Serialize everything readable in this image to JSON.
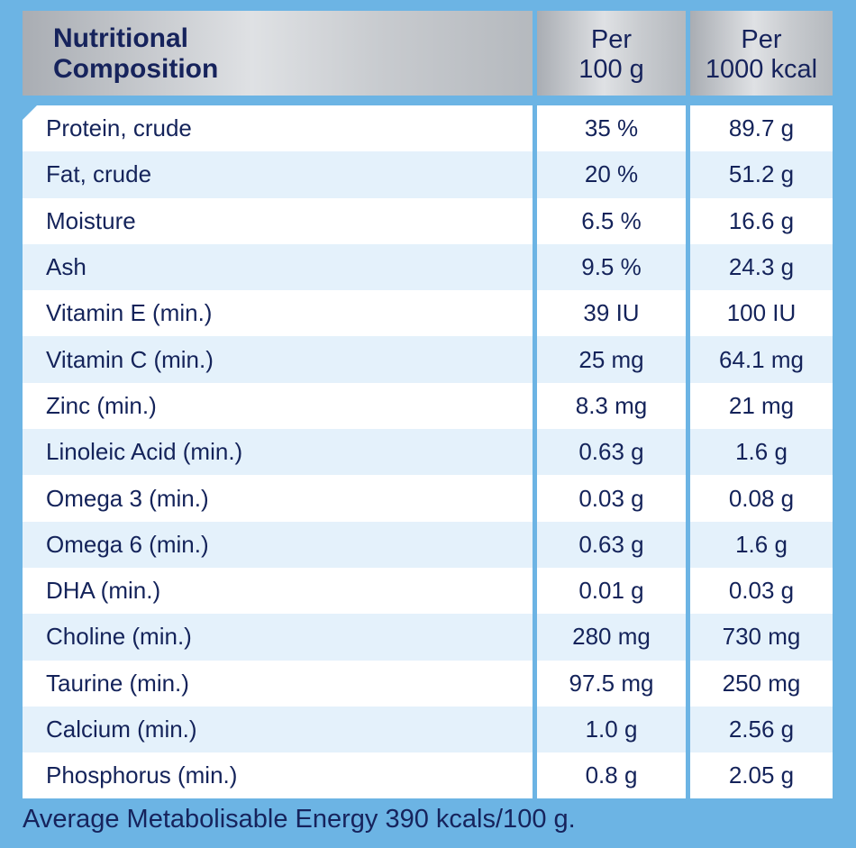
{
  "header": {
    "title": "Nutritional\nComposition",
    "col1": "Per\n100 g",
    "col2": "Per\n1000 kcal"
  },
  "rows": [
    {
      "name": "Protein, crude",
      "per100g": "35 %",
      "per1000kcal": "89.7 g"
    },
    {
      "name": "Fat, crude",
      "per100g": "20 %",
      "per1000kcal": "51.2 g"
    },
    {
      "name": "Moisture",
      "per100g": "6.5 %",
      "per1000kcal": "16.6 g"
    },
    {
      "name": "Ash",
      "per100g": "9.5 %",
      "per1000kcal": "24.3 g"
    },
    {
      "name": "Vitamin E (min.)",
      "per100g": "39 IU",
      "per1000kcal": "100 IU"
    },
    {
      "name": "Vitamin C (min.)",
      "per100g": "25 mg",
      "per1000kcal": "64.1 mg"
    },
    {
      "name": "Zinc (min.)",
      "per100g": "8.3 mg",
      "per1000kcal": "21 mg"
    },
    {
      "name": "Linoleic Acid (min.)",
      "per100g": "0.63 g",
      "per1000kcal": "1.6 g"
    },
    {
      "name": "Omega 3 (min.)",
      "per100g": "0.03 g",
      "per1000kcal": "0.08 g"
    },
    {
      "name": "Omega 6 (min.)",
      "per100g": "0.63 g",
      "per1000kcal": "1.6 g"
    },
    {
      "name": "DHA (min.)",
      "per100g": "0.01 g",
      "per1000kcal": "0.03 g"
    },
    {
      "name": "Choline (min.)",
      "per100g": "280 mg",
      "per1000kcal": "730 mg"
    },
    {
      "name": "Taurine (min.)",
      "per100g": "97.5 mg",
      "per1000kcal": "250 mg"
    },
    {
      "name": "Calcium (min.)",
      "per100g": "1.0 g",
      "per1000kcal": "2.56 g"
    },
    {
      "name": "Phosphorus (min.)",
      "per100g": "0.8 g",
      "per1000kcal": "2.05 g"
    }
  ],
  "footer": "Average Metabolisable Energy 390 kcals/100 g.",
  "colors": {
    "background": "#6cb4e4",
    "text": "#16235c",
    "row_alt": "#e4f1fb"
  }
}
